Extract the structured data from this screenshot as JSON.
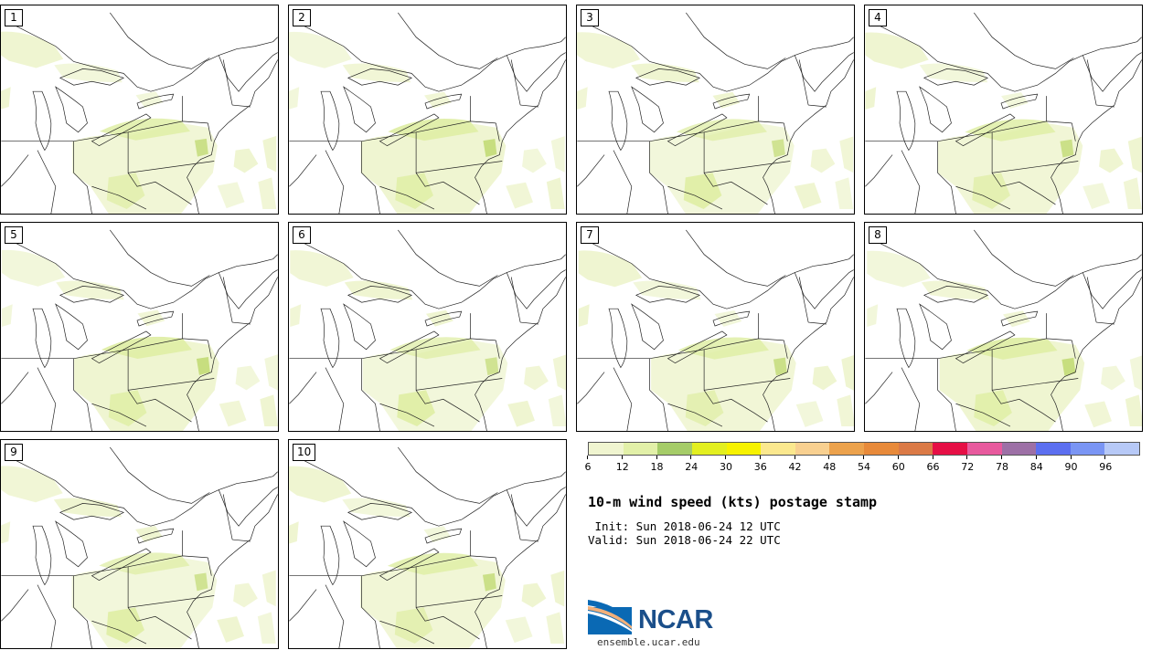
{
  "panels": [
    {
      "label": "1"
    },
    {
      "label": "2"
    },
    {
      "label": "3"
    },
    {
      "label": "4"
    },
    {
      "label": "5"
    },
    {
      "label": "6"
    },
    {
      "label": "7"
    },
    {
      "label": "8"
    },
    {
      "label": "9"
    },
    {
      "label": "10"
    }
  ],
  "colorbar": {
    "colors": [
      "#f0f5d0",
      "#e2f0a8",
      "#a5cc68",
      "#e3ef20",
      "#f7f200",
      "#fbe88e",
      "#f8d090",
      "#eca24c",
      "#e88a3a",
      "#db7a46",
      "#e60f45",
      "#e85a9e",
      "#9d70a6",
      "#5c6ff0",
      "#7a95f4",
      "#b7c9f7"
    ],
    "ticks": [
      "6",
      "12",
      "18",
      "24",
      "30",
      "36",
      "42",
      "48",
      "54",
      "60",
      "66",
      "72",
      "78",
      "84",
      "90",
      "96"
    ]
  },
  "title": "10-m wind speed (kts) postage stamp",
  "init_text": " Init: Sun 2018-06-24 12 UTC",
  "valid_text": "Valid: Sun 2018-06-24 22 UTC",
  "logo": {
    "text": "NCAR",
    "url": "ensemble.ucar.edu"
  },
  "map_colors": {
    "light_fill": "#eef4cf",
    "mid_fill": "#dfeea6",
    "green_fill": "#c4dc7a"
  }
}
